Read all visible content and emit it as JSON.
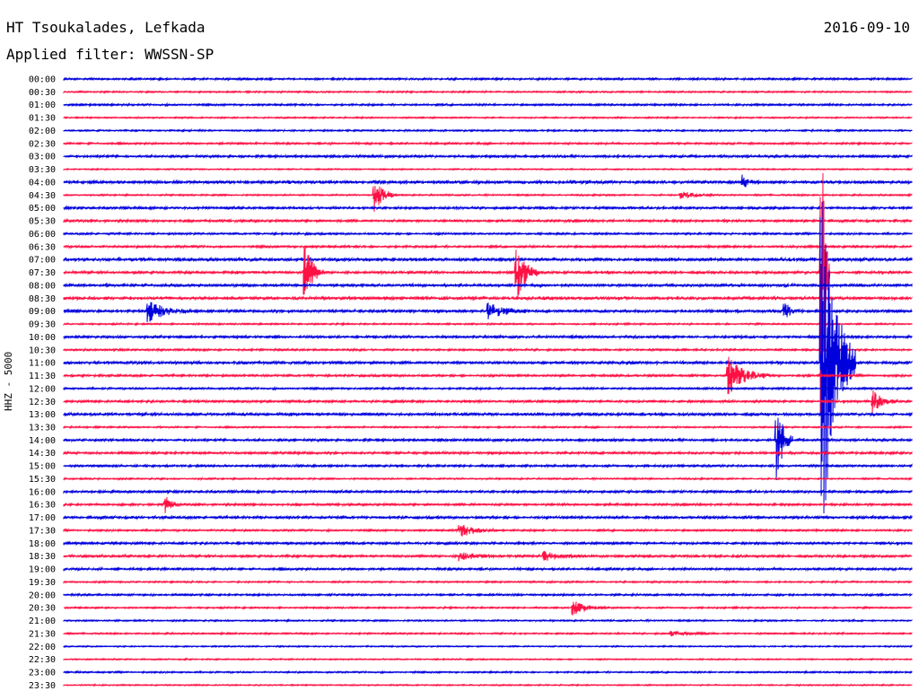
{
  "header": {
    "station": "HT Tsoukalades, Lefkada",
    "date": "2016-09-10",
    "filter_label": "Applied filter:",
    "filter": "WWSSN-SP"
  },
  "channel_label": "HHZ - 5000",
  "colors": {
    "even_trace": "#0000dd",
    "odd_trace": "#ff1144",
    "background": "#ffffff"
  },
  "chart_data": {
    "type": "line",
    "title": "HT Tsoukalades, Lefkada",
    "subtitle": "Applied filter: WWSSN-SP",
    "ylabel": "HHZ - 5000",
    "rows": [
      "00:00",
      "00:30",
      "01:00",
      "01:30",
      "02:00",
      "02:30",
      "03:00",
      "03:30",
      "04:00",
      "04:30",
      "05:00",
      "05:30",
      "06:00",
      "06:30",
      "07:00",
      "07:30",
      "08:00",
      "08:30",
      "09:00",
      "09:30",
      "10:00",
      "10:30",
      "11:00",
      "11:30",
      "12:00",
      "12:30",
      "13:00",
      "13:30",
      "14:00",
      "14:30",
      "15:00",
      "15:30",
      "16:00",
      "16:30",
      "17:00",
      "17:30",
      "18:00",
      "18:30",
      "19:00",
      "19:30",
      "20:00",
      "20:30",
      "21:00",
      "21:30",
      "22:00",
      "22:30",
      "23:00",
      "23:30"
    ],
    "noise_level": [
      1.2,
      1.0,
      1.2,
      0.9,
      1.0,
      1.2,
      1.5,
      0.8,
      2.0,
      1.0,
      1.5,
      1.5,
      1.2,
      1.4,
      2.2,
      1.6,
      1.8,
      2.0,
      1.8,
      1.0,
      1.6,
      1.2,
      1.8,
      1.4,
      1.2,
      1.5,
      1.8,
      1.0,
      1.5,
      1.5,
      1.4,
      1.0,
      1.5,
      1.4,
      1.6,
      1.2,
      1.5,
      1.5,
      1.4,
      1.0,
      1.2,
      1.0,
      1.0,
      1.0,
      0.8,
      0.8,
      1.0,
      0.8
    ],
    "events": [
      {
        "row": 8,
        "minute": 24.0,
        "amplitude": 8,
        "duration": 0.6
      },
      {
        "row": 9,
        "minute": 11.0,
        "amplitude": 18,
        "duration": 0.8
      },
      {
        "row": 9,
        "minute": 21.8,
        "amplitude": 4,
        "duration": 1.5
      },
      {
        "row": 15,
        "minute": 8.5,
        "amplitude": 38,
        "duration": 0.7
      },
      {
        "row": 15,
        "minute": 16.0,
        "amplitude": 38,
        "duration": 0.8
      },
      {
        "row": 15,
        "minute": 26.8,
        "amplitude": 190,
        "duration": 0.3
      },
      {
        "row": 18,
        "minute": 3.0,
        "amplitude": 12,
        "duration": 1.5
      },
      {
        "row": 18,
        "minute": 15.0,
        "amplitude": 10,
        "duration": 1.5
      },
      {
        "row": 18,
        "minute": 25.5,
        "amplitude": 10,
        "duration": 0.6
      },
      {
        "row": 22,
        "minute": 26.8,
        "amplitude": 230,
        "duration": 1.2
      },
      {
        "row": 23,
        "minute": 23.5,
        "amplitude": 22,
        "duration": 1.5
      },
      {
        "row": 25,
        "minute": 28.6,
        "amplitude": 14,
        "duration": 0.8
      },
      {
        "row": 28,
        "minute": 25.2,
        "amplitude": 48,
        "duration": 0.6
      },
      {
        "row": 33,
        "minute": 3.6,
        "amplitude": 10,
        "duration": 0.5
      },
      {
        "row": 35,
        "minute": 14.0,
        "amplitude": 8,
        "duration": 1.5
      },
      {
        "row": 37,
        "minute": 14.0,
        "amplitude": 5,
        "duration": 1.5
      },
      {
        "row": 37,
        "minute": 17.0,
        "amplitude": 5,
        "duration": 1.5
      },
      {
        "row": 41,
        "minute": 18.0,
        "amplitude": 9,
        "duration": 1.2
      },
      {
        "row": 43,
        "minute": 21.5,
        "amplitude": 3,
        "duration": 1.5
      }
    ]
  }
}
